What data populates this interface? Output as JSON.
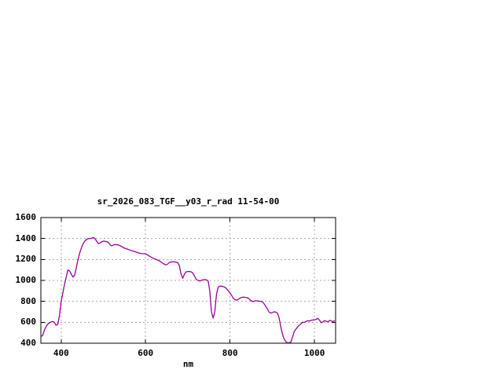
{
  "window": {
    "background_color": "#ffffff"
  },
  "chart_data": {
    "type": "line",
    "title": "sr_2026_083_TGF__y03_r_rad 11-54-00",
    "xlabel": "nm",
    "ylabel": "",
    "xlim": [
      352,
      1050
    ],
    "ylim": [
      400,
      1600
    ],
    "x_ticks": [
      400,
      600,
      800,
      1000
    ],
    "y_ticks": [
      400,
      600,
      800,
      1000,
      1200,
      1400,
      1600
    ],
    "grid": "dashed",
    "legend_position": "none",
    "frame_color": "#000000",
    "grid_color": "#a8a8a8",
    "text_color": "#000000",
    "series": [
      {
        "name": "spectral-radiance",
        "color": "#990099",
        "points": [
          [
            352,
            465
          ],
          [
            356,
            472
          ],
          [
            360,
            520
          ],
          [
            364,
            556
          ],
          [
            368,
            580
          ],
          [
            372,
            595
          ],
          [
            376,
            603
          ],
          [
            380,
            608
          ],
          [
            384,
            600
          ],
          [
            388,
            572
          ],
          [
            392,
            580
          ],
          [
            396,
            660
          ],
          [
            400,
            800
          ],
          [
            404,
            880
          ],
          [
            408,
            960
          ],
          [
            412,
            1030
          ],
          [
            416,
            1100
          ],
          [
            420,
            1090
          ],
          [
            424,
            1060
          ],
          [
            428,
            1032
          ],
          [
            432,
            1050
          ],
          [
            436,
            1120
          ],
          [
            440,
            1200
          ],
          [
            444,
            1262
          ],
          [
            448,
            1310
          ],
          [
            452,
            1350
          ],
          [
            456,
            1375
          ],
          [
            460,
            1390
          ],
          [
            464,
            1398
          ],
          [
            468,
            1400
          ],
          [
            472,
            1402
          ],
          [
            476,
            1410
          ],
          [
            480,
            1400
          ],
          [
            484,
            1375
          ],
          [
            488,
            1352
          ],
          [
            492,
            1356
          ],
          [
            496,
            1368
          ],
          [
            500,
            1375
          ],
          [
            504,
            1373
          ],
          [
            508,
            1370
          ],
          [
            512,
            1362
          ],
          [
            516,
            1340
          ],
          [
            520,
            1330
          ],
          [
            524,
            1340
          ],
          [
            528,
            1342
          ],
          [
            532,
            1340
          ],
          [
            536,
            1338
          ],
          [
            540,
            1330
          ],
          [
            544,
            1322
          ],
          [
            548,
            1312
          ],
          [
            552,
            1305
          ],
          [
            556,
            1300
          ],
          [
            560,
            1295
          ],
          [
            564,
            1288
          ],
          [
            568,
            1282
          ],
          [
            572,
            1278
          ],
          [
            576,
            1272
          ],
          [
            580,
            1268
          ],
          [
            584,
            1262
          ],
          [
            588,
            1258
          ],
          [
            592,
            1256
          ],
          [
            596,
            1255
          ],
          [
            600,
            1252
          ],
          [
            604,
            1245
          ],
          [
            608,
            1235
          ],
          [
            612,
            1225
          ],
          [
            616,
            1215
          ],
          [
            620,
            1208
          ],
          [
            624,
            1202
          ],
          [
            628,
            1195
          ],
          [
            632,
            1188
          ],
          [
            636,
            1178
          ],
          [
            640,
            1165
          ],
          [
            644,
            1155
          ],
          [
            648,
            1148
          ],
          [
            652,
            1155
          ],
          [
            656,
            1170
          ],
          [
            660,
            1175
          ],
          [
            664,
            1178
          ],
          [
            668,
            1178
          ],
          [
            672,
            1175
          ],
          [
            676,
            1170
          ],
          [
            680,
            1140
          ],
          [
            684,
            1060
          ],
          [
            688,
            1020
          ],
          [
            692,
            1060
          ],
          [
            696,
            1082
          ],
          [
            700,
            1085
          ],
          [
            704,
            1085
          ],
          [
            708,
            1082
          ],
          [
            712,
            1070
          ],
          [
            716,
            1040
          ],
          [
            720,
            1010
          ],
          [
            724,
            1000
          ],
          [
            728,
            995
          ],
          [
            732,
            1000
          ],
          [
            736,
            1005
          ],
          [
            740,
            1008
          ],
          [
            744,
            1005
          ],
          [
            748,
            995
          ],
          [
            752,
            900
          ],
          [
            756,
            700
          ],
          [
            760,
            640
          ],
          [
            764,
            700
          ],
          [
            768,
            870
          ],
          [
            772,
            935
          ],
          [
            776,
            945
          ],
          [
            780,
            945
          ],
          [
            784,
            940
          ],
          [
            788,
            935
          ],
          [
            792,
            920
          ],
          [
            796,
            900
          ],
          [
            800,
            880
          ],
          [
            804,
            855
          ],
          [
            808,
            830
          ],
          [
            812,
            815
          ],
          [
            816,
            812
          ],
          [
            820,
            820
          ],
          [
            824,
            832
          ],
          [
            828,
            838
          ],
          [
            832,
            840
          ],
          [
            836,
            838
          ],
          [
            840,
            835
          ],
          [
            844,
            828
          ],
          [
            848,
            812
          ],
          [
            852,
            800
          ],
          [
            856,
            800
          ],
          [
            860,
            805
          ],
          [
            864,
            805
          ],
          [
            868,
            802
          ],
          [
            872,
            800
          ],
          [
            876,
            798
          ],
          [
            880,
            780
          ],
          [
            884,
            755
          ],
          [
            888,
            730
          ],
          [
            892,
            700
          ],
          [
            896,
            688
          ],
          [
            900,
            692
          ],
          [
            904,
            700
          ],
          [
            908,
            698
          ],
          [
            912,
            690
          ],
          [
            916,
            645
          ],
          [
            920,
            560
          ],
          [
            924,
            490
          ],
          [
            928,
            440
          ],
          [
            932,
            415
          ],
          [
            936,
            405
          ],
          [
            940,
            405
          ],
          [
            944,
            410
          ],
          [
            948,
            460
          ],
          [
            952,
            510
          ],
          [
            956,
            535
          ],
          [
            960,
            555
          ],
          [
            964,
            572
          ],
          [
            968,
            585
          ],
          [
            972,
            600
          ],
          [
            976,
            598
          ],
          [
            980,
            608
          ],
          [
            984,
            615
          ],
          [
            988,
            612
          ],
          [
            992,
            618
          ],
          [
            996,
            622
          ],
          [
            1000,
            625
          ],
          [
            1004,
            628
          ],
          [
            1008,
            638
          ],
          [
            1012,
            620
          ],
          [
            1016,
            595
          ],
          [
            1020,
            605
          ],
          [
            1024,
            615
          ],
          [
            1028,
            610
          ],
          [
            1032,
            605
          ],
          [
            1036,
            618
          ],
          [
            1040,
            612
          ],
          [
            1044,
            608
          ],
          [
            1048,
            615
          ]
        ]
      }
    ]
  }
}
